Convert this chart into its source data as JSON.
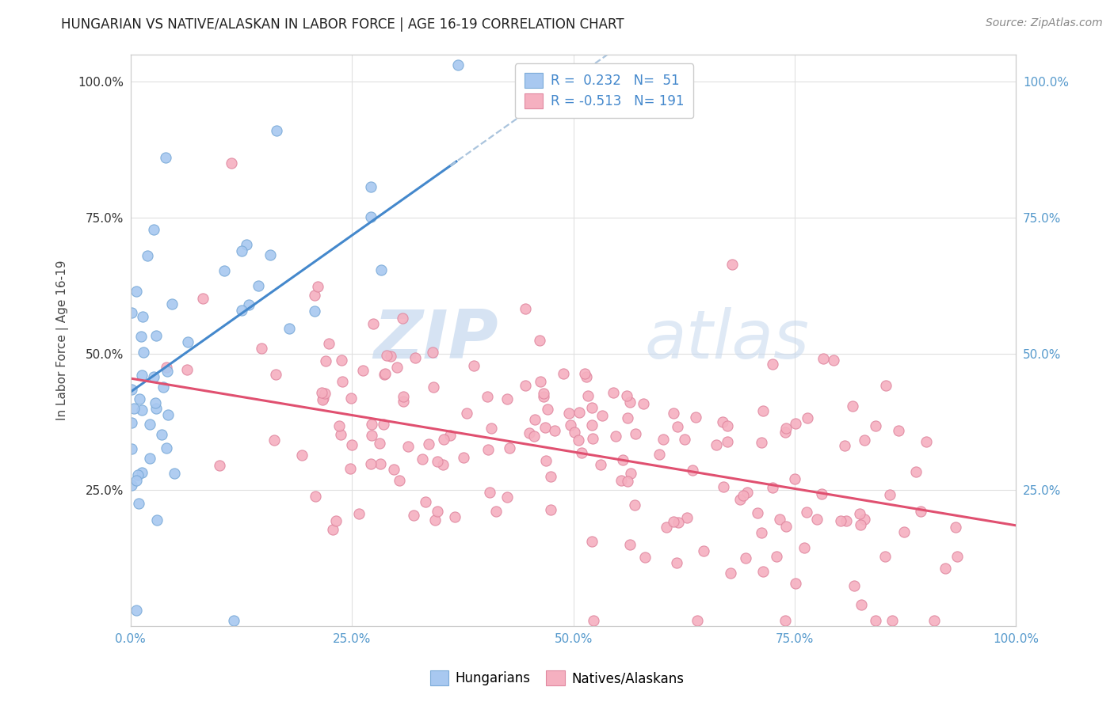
{
  "title": "HUNGARIAN VS NATIVE/ALASKAN IN LABOR FORCE | AGE 16-19 CORRELATION CHART",
  "source": "Source: ZipAtlas.com",
  "ylabel": "In Labor Force | Age 16-19",
  "xlim": [
    0.0,
    1.0
  ],
  "ylim": [
    0.0,
    1.05
  ],
  "xticks": [
    0.0,
    0.25,
    0.5,
    0.75,
    1.0
  ],
  "yticks": [
    0.0,
    0.25,
    0.5,
    0.75,
    1.0
  ],
  "xticklabels": [
    "0.0%",
    "25.0%",
    "50.0%",
    "75.0%",
    "100.0%"
  ],
  "left_yticklabels": [
    "",
    "25.0%",
    "50.0%",
    "75.0%",
    "100.0%"
  ],
  "right_yticklabels": [
    "",
    "25.0%",
    "50.0%",
    "75.0%",
    "100.0%"
  ],
  "hungarian_color": "#a8c8f0",
  "hungarian_edge": "#7aaad8",
  "native_color": "#f5b0c0",
  "native_edge": "#e088a0",
  "hungarian_R": 0.232,
  "hungarian_N": 51,
  "native_R": -0.513,
  "native_N": 191,
  "legend_label_hungarian": "Hungarians",
  "legend_label_native": "Natives/Alaskans",
  "watermark_zip": "ZIP",
  "watermark_atlas": "atlas",
  "background_color": "#ffffff",
  "grid_color": "#e0e0e0",
  "title_fontsize": 12,
  "axis_label_fontsize": 11,
  "tick_fontsize": 11,
  "source_fontsize": 10,
  "legend_fontsize": 12,
  "blue_line_color": "#4488cc",
  "pink_line_color": "#e05070",
  "dashed_line_color": "#aac4dd",
  "hungarian_line_intercept": 0.43,
  "hungarian_line_slope": 1.15,
  "native_line_intercept": 0.455,
  "native_line_slope": -0.27
}
